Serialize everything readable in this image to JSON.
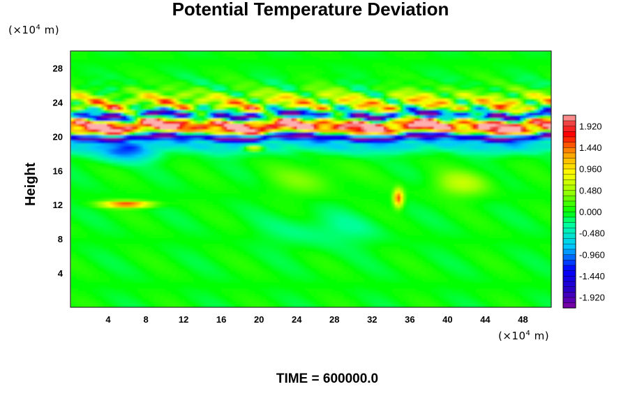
{
  "chart_data": {
    "type": "heatmap",
    "title": "Potential Temperature Deviation",
    "ylabel": "Height",
    "xunit": {
      "prefix": "(×10",
      "exp": "4",
      "suffix": " m)"
    },
    "yunit": {
      "prefix": "(×10",
      "exp": "4",
      "suffix": " m)"
    },
    "xlim": [
      0,
      51
    ],
    "ylim": [
      0,
      30
    ],
    "xticks": [
      4,
      8,
      12,
      16,
      20,
      24,
      28,
      32,
      36,
      40,
      44,
      48
    ],
    "yticks": [
      4,
      8,
      12,
      16,
      20,
      24,
      28
    ],
    "colorbar": {
      "range": [
        -2.16,
        2.16
      ],
      "levels": 36,
      "tick_labels": [
        "1.920",
        "1.440",
        "0.960",
        "0.480",
        "0.000",
        "-0.480",
        "-0.960",
        "-1.440",
        "-1.920"
      ],
      "tick_values": [
        1.92,
        1.44,
        0.96,
        0.48,
        0.0,
        -0.48,
        -0.96,
        -1.44,
        -1.92
      ]
    },
    "features": [
      {
        "kind": "band",
        "y": 21.2,
        "half_width": 1.0,
        "value": 2.0
      },
      {
        "kind": "band",
        "y": 22.5,
        "half_width": 0.5,
        "value": -2.0
      },
      {
        "kind": "band",
        "y": 20.0,
        "half_width": 0.4,
        "value": -2.0
      },
      {
        "kind": "band",
        "y": 24.0,
        "half_width": 1.2,
        "value": 0.7
      },
      {
        "kind": "band",
        "y": 19.2,
        "half_width": 1.0,
        "value": -0.7
      },
      {
        "kind": "blob",
        "x": 6.0,
        "y": 12.1,
        "rx": 2.6,
        "ry": 0.35,
        "value": 1.7
      },
      {
        "kind": "blob",
        "x": 34.8,
        "y": 12.8,
        "rx": 0.5,
        "ry": 1.0,
        "value": 1.6
      },
      {
        "kind": "blob",
        "x": 19.5,
        "y": 18.7,
        "rx": 1.2,
        "ry": 0.4,
        "value": 1.4
      },
      {
        "kind": "blob",
        "x": 41.5,
        "y": 14.5,
        "rx": 3.0,
        "ry": 1.5,
        "value": 0.55
      },
      {
        "kind": "blob",
        "x": 25.0,
        "y": 15.0,
        "rx": 4.0,
        "ry": 1.8,
        "value": 0.3
      },
      {
        "kind": "blob",
        "x": 6.0,
        "y": 18.0,
        "rx": 3.0,
        "ry": 1.0,
        "value": -0.8
      },
      {
        "kind": "blob",
        "x": 27.0,
        "y": 9.0,
        "rx": 6.0,
        "ry": 2.0,
        "value": -0.25
      }
    ]
  },
  "time_text": "TIME = 600000.0"
}
